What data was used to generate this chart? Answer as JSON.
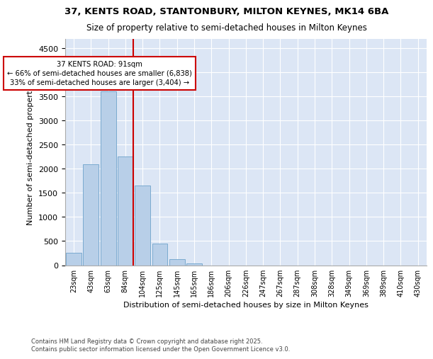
{
  "title_line1": "37, KENTS ROAD, STANTONBURY, MILTON KEYNES, MK14 6BA",
  "title_line2": "Size of property relative to semi-detached houses in Milton Keynes",
  "xlabel": "Distribution of semi-detached houses by size in Milton Keynes",
  "ylabel": "Number of semi-detached properties",
  "footnote": "Contains HM Land Registry data © Crown copyright and database right 2025.\nContains public sector information licensed under the Open Government Licence v3.0.",
  "bar_color": "#b8cfe8",
  "bar_edge_color": "#7aaad0",
  "background_color": "#dce6f5",
  "annotation_box_color": "#cc0000",
  "vline_color": "#cc0000",
  "annotation_text": "37 KENTS ROAD: 91sqm\n← 66% of semi-detached houses are smaller (6,838)\n33% of semi-detached houses are larger (3,404) →",
  "categories": [
    "23sqm",
    "43sqm",
    "63sqm",
    "84sqm",
    "104sqm",
    "125sqm",
    "145sqm",
    "165sqm",
    "186sqm",
    "206sqm",
    "226sqm",
    "247sqm",
    "267sqm",
    "287sqm",
    "308sqm",
    "328sqm",
    "349sqm",
    "369sqm",
    "389sqm",
    "410sqm",
    "430sqm"
  ],
  "values": [
    250,
    2100,
    3600,
    2250,
    1650,
    450,
    120,
    30,
    0,
    0,
    0,
    0,
    0,
    0,
    0,
    0,
    0,
    0,
    0,
    0,
    0
  ],
  "vline_x": 3.0,
  "ylim": [
    0,
    4700
  ],
  "yticks": [
    0,
    500,
    1000,
    1500,
    2000,
    2500,
    3000,
    3500,
    4000,
    4500
  ]
}
